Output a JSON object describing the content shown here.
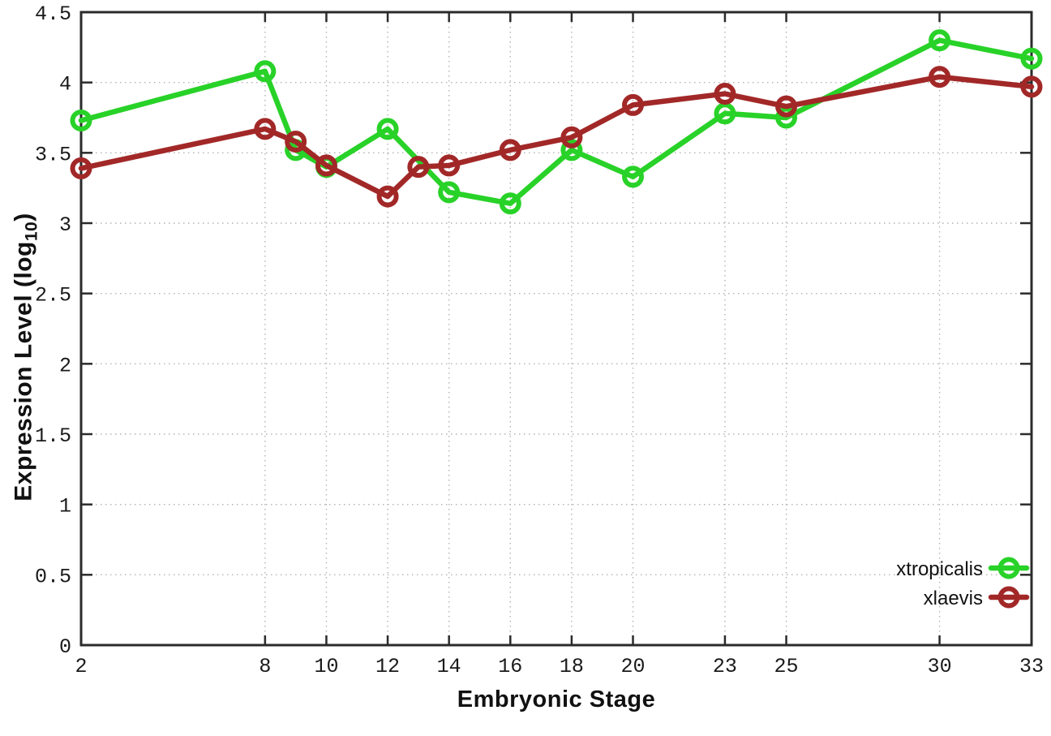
{
  "chart_data": {
    "type": "line",
    "title": "",
    "xlabel": "Embryonic Stage",
    "ylabel": "Expression Level (log10)",
    "ylabel_parts": {
      "main": "Expression Level (log",
      "sub": "10",
      "suffix": ")"
    },
    "xlim": [
      2,
      33
    ],
    "ylim": [
      0,
      4.5
    ],
    "x_ticks": [
      2,
      8,
      10,
      12,
      14,
      16,
      18,
      20,
      23,
      25,
      30,
      33
    ],
    "y_ticks": [
      0,
      0.5,
      1,
      1.5,
      2,
      2.5,
      3,
      3.5,
      4,
      4.5
    ],
    "y_tick_labels": [
      "0",
      "0.5",
      "1",
      "1.5",
      "2",
      "2.5",
      "3",
      "3.5",
      "4",
      "4.5"
    ],
    "grid": true,
    "legend_position": "inside-bottom-right",
    "marker": "open-circle",
    "series": [
      {
        "name": "xtropicalis",
        "color": "#28d228",
        "points": [
          [
            2,
            3.73
          ],
          [
            8,
            4.08
          ],
          [
            9,
            3.52
          ],
          [
            10,
            3.4
          ],
          [
            12,
            3.67
          ],
          [
            14,
            3.22
          ],
          [
            16,
            3.14
          ],
          [
            18,
            3.52
          ],
          [
            20,
            3.33
          ],
          [
            23,
            3.78
          ],
          [
            25,
            3.75
          ],
          [
            30,
            4.3
          ],
          [
            33,
            4.17
          ]
        ]
      },
      {
        "name": "xlaevis",
        "color": "#a22828",
        "points": [
          [
            2,
            3.39
          ],
          [
            8,
            3.67
          ],
          [
            9,
            3.58
          ],
          [
            10,
            3.41
          ],
          [
            12,
            3.19
          ],
          [
            13,
            3.4
          ],
          [
            14,
            3.41
          ],
          [
            16,
            3.52
          ],
          [
            18,
            3.61
          ],
          [
            20,
            3.84
          ],
          [
            23,
            3.92
          ],
          [
            25,
            3.83
          ],
          [
            30,
            4.04
          ],
          [
            33,
            3.97
          ]
        ]
      }
    ],
    "colors": {
      "grid": "#b3b3b3",
      "border": "#2b2b2b",
      "tick_text": "#1a1a1a"
    }
  }
}
